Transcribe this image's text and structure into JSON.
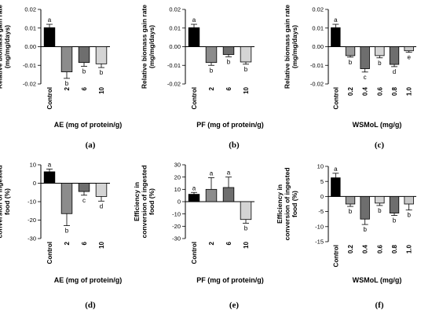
{
  "figure": {
    "panels": [
      {
        "id": "a",
        "panel_label": "(a)",
        "chart_data": {
          "type": "bar",
          "categories": [
            "Control",
            "2",
            "6",
            "10"
          ],
          "values": [
            0.0102,
            -0.0135,
            -0.0085,
            -0.0092
          ],
          "errors": [
            0.0018,
            0.0035,
            0.002,
            0.002
          ],
          "letters": [
            "a",
            "b",
            "b",
            "b"
          ],
          "colors": [
            "#000000",
            "#8c8c8c",
            "#6e6e6e",
            "#d4d4d4"
          ],
          "title": "",
          "xlabel": "AE (mg of protein/g)",
          "ylabel": "Relative biomass gain rate (mg/mg/days)",
          "ylim": [
            -0.02,
            0.02
          ],
          "yticks": [
            -0.02,
            -0.01,
            0.0,
            0.01,
            0.02
          ],
          "ytick_labels": [
            "-0.02",
            "-0.01",
            "0.00",
            "0.01",
            "0.02"
          ]
        }
      },
      {
        "id": "b",
        "panel_label": "(b)",
        "chart_data": {
          "type": "bar",
          "categories": [
            "Control",
            "2",
            "6",
            "10"
          ],
          "values": [
            0.0102,
            -0.0085,
            -0.0042,
            -0.0082
          ],
          "errors": [
            0.0018,
            0.0015,
            0.0012,
            0.0012
          ],
          "letters": [
            "a",
            "b",
            "b",
            "b"
          ],
          "colors": [
            "#000000",
            "#8c8c8c",
            "#6e6e6e",
            "#d4d4d4"
          ],
          "title": "",
          "xlabel": "PF (mg of protein/g)",
          "ylabel": "Relative biomass gain rate (mg/mg/days)",
          "ylim": [
            -0.02,
            0.02
          ],
          "yticks": [
            -0.02,
            -0.01,
            0.0,
            0.01,
            0.02
          ],
          "ytick_labels": [
            "-0.02",
            "-0.01",
            "0.00",
            "0.01",
            "0.02"
          ]
        }
      },
      {
        "id": "c",
        "panel_label": "(c)",
        "chart_data": {
          "type": "bar",
          "categories": [
            "Control",
            "0.2",
            "0.4",
            "0.6",
            "0.8",
            "1.0"
          ],
          "values": [
            0.0102,
            -0.0048,
            -0.0118,
            -0.0048,
            -0.0095,
            -0.0022
          ],
          "errors": [
            0.0018,
            0.0008,
            0.0018,
            0.0012,
            0.0012,
            0.0008
          ],
          "letters": [
            "a",
            "b",
            "c",
            "b",
            "d",
            "e"
          ],
          "colors": [
            "#000000",
            "#9a9a9a",
            "#6e6e6e",
            "#d4d4d4",
            "#6e6e6e",
            "#c8c8c8"
          ],
          "title": "",
          "xlabel": "WSMoL (mg/g)",
          "ylabel": "Relative biomass gain rate (mg/mg/days)",
          "ylim": [
            -0.02,
            0.02
          ],
          "yticks": [
            -0.02,
            -0.01,
            0.0,
            0.01,
            0.02
          ],
          "ytick_labels": [
            "-0.02",
            "-0.01",
            "0.00",
            "0.01",
            "0.02"
          ]
        }
      },
      {
        "id": "d",
        "panel_label": "(d)",
        "chart_data": {
          "type": "bar",
          "categories": [
            "Control",
            "2",
            "6",
            "10"
          ],
          "values": [
            6.2,
            -16.5,
            -4.5,
            -7.2
          ],
          "errors": [
            1.5,
            6.5,
            2.0,
            2.5
          ],
          "letters": [
            "a",
            "b",
            "c",
            "d"
          ],
          "colors": [
            "#000000",
            "#8c8c8c",
            "#6e6e6e",
            "#d4d4d4"
          ],
          "title": "",
          "xlabel": "AE (mg of protein/g)",
          "ylabel": "Efficiency in conversion of ingested food (%)",
          "ylim": [
            -30,
            10
          ],
          "yticks": [
            -30,
            -20,
            -10,
            0,
            10
          ],
          "ytick_labels": [
            "-30",
            "-20",
            "-10",
            "0",
            "10"
          ]
        }
      },
      {
        "id": "e",
        "panel_label": "(e)",
        "chart_data": {
          "type": "bar",
          "categories": [
            "Control",
            "2",
            "6",
            "10"
          ],
          "values": [
            6.0,
            10.0,
            11.5,
            -14.5
          ],
          "errors": [
            1.5,
            9.5,
            8.5,
            3.0
          ],
          "letters": [
            "a",
            "a",
            "a",
            "b"
          ],
          "colors": [
            "#000000",
            "#8c8c8c",
            "#6e6e6e",
            "#d4d4d4"
          ],
          "title": "",
          "xlabel": "PF (mg of protein/g)",
          "ylabel": "Efficiency in conversion of ingested food (%)",
          "ylim": [
            -30,
            30
          ],
          "yticks": [
            -30,
            -20,
            -10,
            0,
            10,
            20,
            30
          ],
          "ytick_labels": [
            "-30",
            "-20",
            "-10",
            "0",
            "10",
            "20",
            "30"
          ]
        }
      },
      {
        "id": "f",
        "panel_label": "(f)",
        "chart_data": {
          "type": "bar",
          "categories": [
            "Control",
            "0.2",
            "0.4",
            "0.6",
            "0.8",
            "1.0"
          ],
          "values": [
            6.2,
            -2.5,
            -7.5,
            -2.2,
            -5.5,
            -2.5
          ],
          "errors": [
            1.5,
            0.8,
            1.8,
            0.8,
            0.8,
            2.0
          ],
          "letters": [
            "a",
            "b",
            "b",
            "b",
            "b",
            "b"
          ],
          "colors": [
            "#000000",
            "#9a9a9a",
            "#6e6e6e",
            "#d4d4d4",
            "#6e6e6e",
            "#c8c8c8"
          ],
          "title": "",
          "xlabel": "WSMoL (mg/g)",
          "ylabel": "Efficiency in conversion of ingested food (%)",
          "ylim": [
            -15,
            10
          ],
          "yticks": [
            -15,
            -10,
            -5,
            0,
            5,
            10
          ],
          "ytick_labels": [
            "-15",
            "-10",
            "-5",
            "0",
            "5",
            "10"
          ]
        }
      }
    ]
  }
}
